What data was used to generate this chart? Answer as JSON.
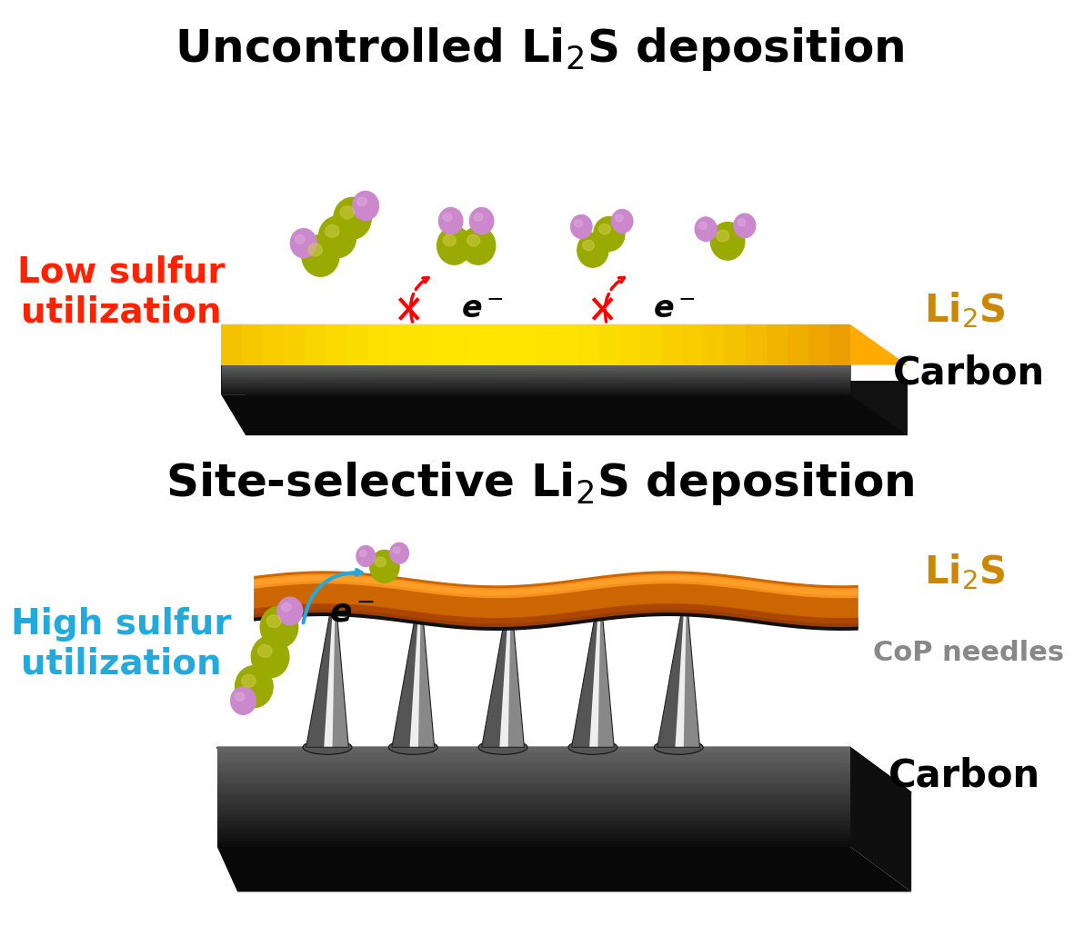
{
  "title1": "Uncontrolled Li$_2$S deposition",
  "title2": "Site-selective Li$_2$S deposition",
  "label_low": "Low sulfur\nutilization",
  "label_high": "High sulfur\nutilization",
  "label_li2s": "Li$_2$S",
  "label_carbon": "Carbon",
  "label_cop": "CoP needles",
  "sulfur_color": "#9aaa00",
  "sulfur_highlight": "#cccc44",
  "lithium_color": "#cc88cc",
  "lithium_highlight": "#ddaadd",
  "li2s_label_color": "#cc8800",
  "low_color": "#ff2200",
  "high_color": "#22aadd",
  "carbon_dark": "#111111",
  "carbon_mid": "#444444",
  "carbon_light": "#888888",
  "carbon_front": "#2a2a2a",
  "gold_dark": "#aa6600",
  "gold_mid": "#dd8800",
  "gold_bright": "#ffaa00",
  "gold_highlight": "#ffcc55",
  "orange_dark": "#aa4400",
  "orange_mid": "#cc6600",
  "orange_bright": "#ee8800",
  "orange_highlight": "#ff9922",
  "cop_dark": "#555555",
  "cop_mid": "#888888",
  "cop_light": "#cccccc",
  "cop_bright": "#eeeeee",
  "bg_color": "#ffffff",
  "title_fontsize": 36,
  "label_fontsize": 30,
  "side_label_fontsize": 28,
  "annot_fontsize": 24
}
